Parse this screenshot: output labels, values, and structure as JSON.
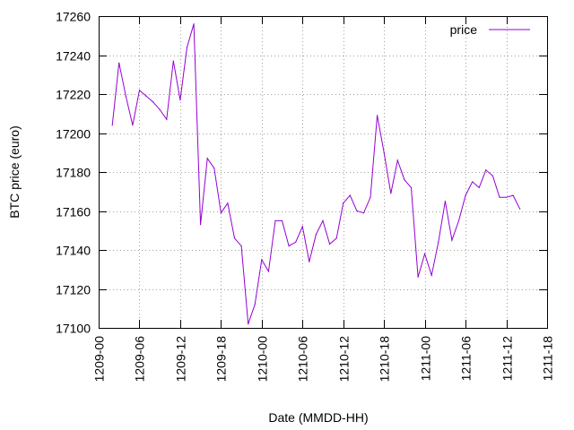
{
  "chart_data": {
    "type": "line",
    "xlabel": "Date (MMDD-HH)",
    "ylabel": "BTC price (euro)",
    "legend": {
      "position": "top-right",
      "entries": [
        "price"
      ]
    },
    "grid": true,
    "x_scale": "hours",
    "x_ticks": [
      "1209-00",
      "1209-06",
      "1209-12",
      "1209-18",
      "1210-00",
      "1210-06",
      "1210-12",
      "1210-18",
      "1211-00",
      "1211-06",
      "1211-12",
      "1211-18"
    ],
    "ylim": [
      17100,
      17260
    ],
    "y_ticks": [
      17100,
      17120,
      17140,
      17160,
      17180,
      17200,
      17220,
      17240,
      17260
    ],
    "series": [
      {
        "name": "price",
        "color": "#9400d3",
        "x": [
          "1209-02",
          "1209-03",
          "1209-04",
          "1209-05",
          "1209-06",
          "1209-07",
          "1209-08",
          "1209-09",
          "1209-10",
          "1209-11",
          "1209-12",
          "1209-13",
          "1209-14",
          "1209-15",
          "1209-16",
          "1209-17",
          "1209-18",
          "1209-19",
          "1209-20",
          "1209-21",
          "1209-22",
          "1209-23",
          "1210-00",
          "1210-01",
          "1210-02",
          "1210-03",
          "1210-04",
          "1210-05",
          "1210-06",
          "1210-07",
          "1210-08",
          "1210-09",
          "1210-10",
          "1210-11",
          "1210-12",
          "1210-13",
          "1210-14",
          "1210-15",
          "1210-16",
          "1210-17",
          "1210-18",
          "1210-19",
          "1210-20",
          "1210-21",
          "1210-22",
          "1210-23",
          "1211-00",
          "1211-01",
          "1211-02",
          "1211-03",
          "1211-04",
          "1211-05",
          "1211-06",
          "1211-07",
          "1211-08",
          "1211-09",
          "1211-10",
          "1211-11",
          "1211-12",
          "1211-13",
          "1211-14"
        ],
        "y": [
          17204,
          17236,
          17219,
          17204,
          17222,
          17219,
          17216,
          17212,
          17207,
          17237,
          17217,
          17244,
          17256,
          17153,
          17187,
          17182,
          17159,
          17164,
          17146,
          17142,
          17102,
          17112,
          17135,
          17129,
          17155,
          17155,
          17142,
          17144,
          17152,
          17134,
          17148,
          17155,
          17143,
          17146,
          17164,
          17168,
          17160,
          17159,
          17167,
          17209,
          17190,
          17169,
          17186,
          17176,
          17172,
          17126,
          17138,
          17127,
          17144,
          17165,
          17145,
          17155,
          17168,
          17175,
          17172,
          17181,
          17178,
          17167,
          17167,
          17168,
          17161
        ]
      }
    ]
  }
}
